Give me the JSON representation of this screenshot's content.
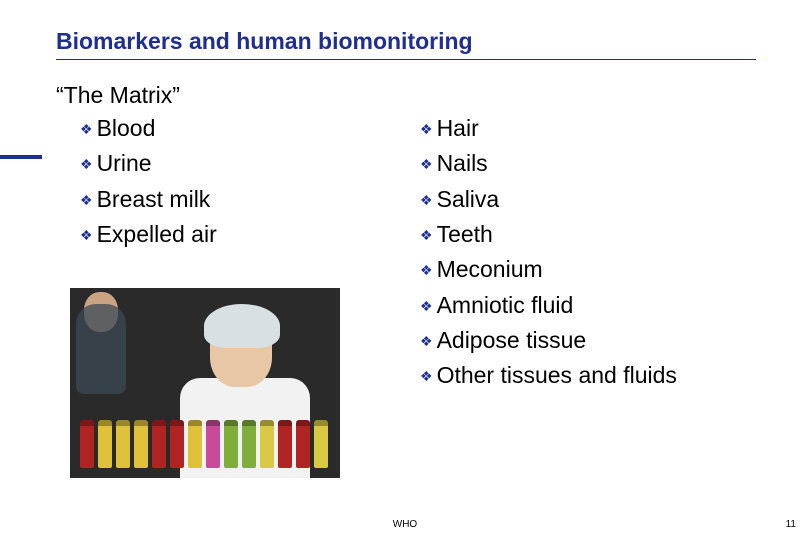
{
  "header": {
    "title": "Biomarkers and human biomonitoring",
    "title_color": "#1f2f8f",
    "title_fontsize": 23,
    "underline_color": "#1f2f8f"
  },
  "subtitle": "“The Matrix”",
  "bullet_glyph": "❖",
  "bullet_color": "#1f2f8f",
  "text_color": "#000000",
  "body_fontsize": 23,
  "left_items": [
    "Blood",
    "Urine",
    "Breast milk",
    "Expelled air"
  ],
  "right_items": [
    "Hair",
    "Nails",
    "Saliva",
    "Teeth",
    "Meconium",
    "Amniotic fluid",
    "Adipose tissue",
    "Other tissues and fluids"
  ],
  "sidebar_accent_color": "#1f2f8f",
  "photo": {
    "background_color": "#2a2a2a",
    "tube_colors": [
      "#b02424",
      "#e0c23a",
      "#e0c23a",
      "#e0c23a",
      "#b02424",
      "#b02424",
      "#e0c23a",
      "#c94a9a",
      "#7fae3a",
      "#7fae3a",
      "#d8c843",
      "#b02424",
      "#b02424",
      "#d8c843"
    ],
    "cap_color": "#d8e0e4",
    "skin_color": "#e8c7a7",
    "coat_color": "#f2f2f2"
  },
  "footer": {
    "label": "WHO",
    "page_number": "11"
  }
}
